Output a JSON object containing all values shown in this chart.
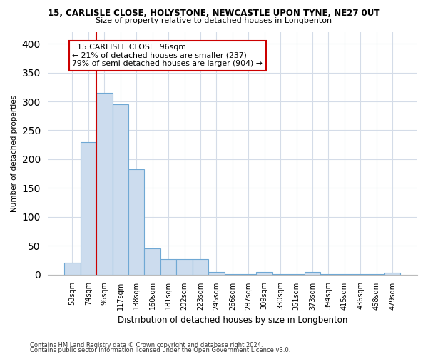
{
  "title_line1": "15, CARLISLE CLOSE, HOLYSTONE, NEWCASTLE UPON TYNE, NE27 0UT",
  "title_line2": "Size of property relative to detached houses in Longbenton",
  "xlabel": "Distribution of detached houses by size in Longbenton",
  "ylabel": "Number of detached properties",
  "categories": [
    "53sqm",
    "74sqm",
    "96sqm",
    "117sqm",
    "138sqm",
    "160sqm",
    "181sqm",
    "202sqm",
    "223sqm",
    "245sqm",
    "266sqm",
    "287sqm",
    "309sqm",
    "330sqm",
    "351sqm",
    "373sqm",
    "394sqm",
    "415sqm",
    "436sqm",
    "458sqm",
    "479sqm"
  ],
  "values": [
    20,
    230,
    315,
    295,
    183,
    45,
    27,
    27,
    27,
    5,
    1,
    1,
    5,
    1,
    1,
    5,
    1,
    1,
    1,
    1,
    3
  ],
  "bar_color": "#ccdcee",
  "bar_edge_color": "#6fa8d4",
  "grid_color": "#d4dce8",
  "background_color": "#ffffff",
  "property_line_index": 2,
  "annotation_title": "15 CARLISLE CLOSE: 96sqm",
  "annotation_line2": "← 21% of detached houses are smaller (237)",
  "annotation_line3": "79% of semi-detached houses are larger (904) →",
  "annotation_box_color": "#ffffff",
  "annotation_border_color": "#cc0000",
  "property_line_color": "#cc0000",
  "footnote_line1": "Contains HM Land Registry data © Crown copyright and database right 2024.",
  "footnote_line2": "Contains public sector information licensed under the Open Government Licence v3.0.",
  "ylim": [
    0,
    420
  ],
  "yticks": [
    0,
    50,
    100,
    150,
    200,
    250,
    300,
    350,
    400
  ]
}
